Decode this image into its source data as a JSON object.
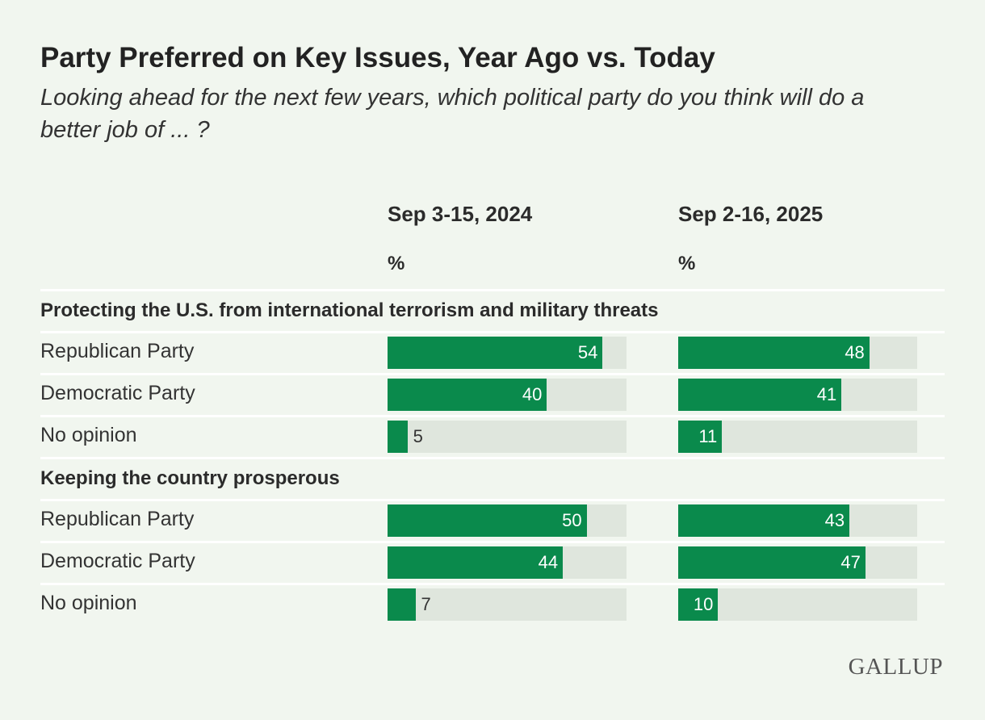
{
  "title": "Party Preferred on Key Issues, Year Ago vs. Today",
  "subtitle": "Looking ahead for the next few years, which political party do you think will do a better job of ... ?",
  "columns": [
    {
      "label": "Sep 3-15, 2024",
      "unit": "%"
    },
    {
      "label": "Sep 2-16, 2025",
      "unit": "%"
    }
  ],
  "logo": "GALLUP",
  "colors": {
    "bar": "#0a8a4c",
    "track": "#dfe6dd",
    "background": "#f1f6ef"
  },
  "chart_data": {
    "type": "bar",
    "scale_max": 60,
    "series": [
      {
        "name": "Sep 3-15, 2024"
      },
      {
        "name": "Sep 2-16, 2025"
      }
    ],
    "sections": [
      {
        "label": "Protecting the U.S. from international terrorism and military threats",
        "rows": [
          {
            "label": "Republican Party",
            "values": [
              54,
              48
            ]
          },
          {
            "label": "Democratic Party",
            "values": [
              40,
              41
            ]
          },
          {
            "label": "No opinion",
            "values": [
              5,
              11
            ]
          }
        ]
      },
      {
        "label": "Keeping the country prosperous",
        "rows": [
          {
            "label": "Republican Party",
            "values": [
              50,
              43
            ]
          },
          {
            "label": "Democratic Party",
            "values": [
              44,
              47
            ]
          },
          {
            "label": "No opinion",
            "values": [
              7,
              10
            ]
          }
        ]
      }
    ]
  }
}
